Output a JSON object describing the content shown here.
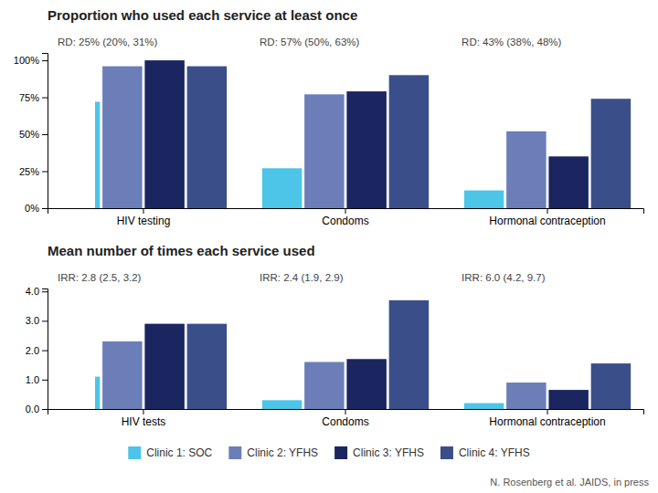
{
  "chart_data": [
    {
      "type": "bar",
      "title": "Proportion who used each service at least once",
      "categories": [
        "HIV testing",
        "Condoms",
        "Hormonal contraception"
      ],
      "series": [
        {
          "name": "Clinic 1: SOC",
          "color": "#4DC5E8",
          "values": [
            0.72,
            0.27,
            0.12
          ]
        },
        {
          "name": "Clinic 2: YFHS",
          "color": "#6B7EB8",
          "values": [
            0.96,
            0.77,
            0.52
          ]
        },
        {
          "name": "Clinic 3: YFHS",
          "color": "#1B2560",
          "values": [
            1.0,
            0.79,
            0.35
          ]
        },
        {
          "name": "Clinic 4: YFHS",
          "color": "#3A4F8A",
          "values": [
            0.96,
            0.9,
            0.74
          ]
        }
      ],
      "annotations": [
        "RD: 25% (20%, 31%)",
        "RD: 57% (50%, 63%)",
        "RD: 43% (38%, 48%)"
      ],
      "ylim": [
        0,
        1.05
      ],
      "yticks": [
        {
          "value": 0,
          "label": "0%"
        },
        {
          "value": 0.25,
          "label": "25%"
        },
        {
          "value": 0.5,
          "label": "50%"
        },
        {
          "value": 0.75,
          "label": "75%"
        },
        {
          "value": 1.0,
          "label": "100%"
        }
      ],
      "grid": false
    },
    {
      "type": "bar",
      "title": "Mean number of times each service used",
      "categories": [
        "HIV tests",
        "Condoms",
        "Hormonal contraception"
      ],
      "series": [
        {
          "name": "Clinic 1: SOC",
          "color": "#4DC5E8",
          "values": [
            1.1,
            0.3,
            0.2
          ]
        },
        {
          "name": "Clinic 2: YFHS",
          "color": "#6B7EB8",
          "values": [
            2.3,
            1.6,
            0.9
          ]
        },
        {
          "name": "Clinic 3: YFHS",
          "color": "#1B2560",
          "values": [
            2.9,
            1.7,
            0.65
          ]
        },
        {
          "name": "Clinic 4: YFHS",
          "color": "#3A4F8A",
          "values": [
            2.9,
            3.7,
            1.55
          ]
        }
      ],
      "annotations": [
        "IRR: 2.8 (2.5, 3.2)",
        "IRR: 2.4 (1.9, 2.9)",
        "IRR: 6.0 (4.2, 9.7)"
      ],
      "caption": "N. Rosenberg et al. JAIDS, in press",
      "ylim": [
        0,
        4.1
      ],
      "yticks": [
        {
          "value": 0,
          "label": "0.0"
        },
        {
          "value": 1,
          "label": "1.0"
        },
        {
          "value": 2,
          "label": "2.0"
        },
        {
          "value": 3,
          "label": "3.0"
        },
        {
          "value": 4,
          "label": "4.0"
        }
      ],
      "grid": false,
      "legend": "bottom"
    }
  ]
}
